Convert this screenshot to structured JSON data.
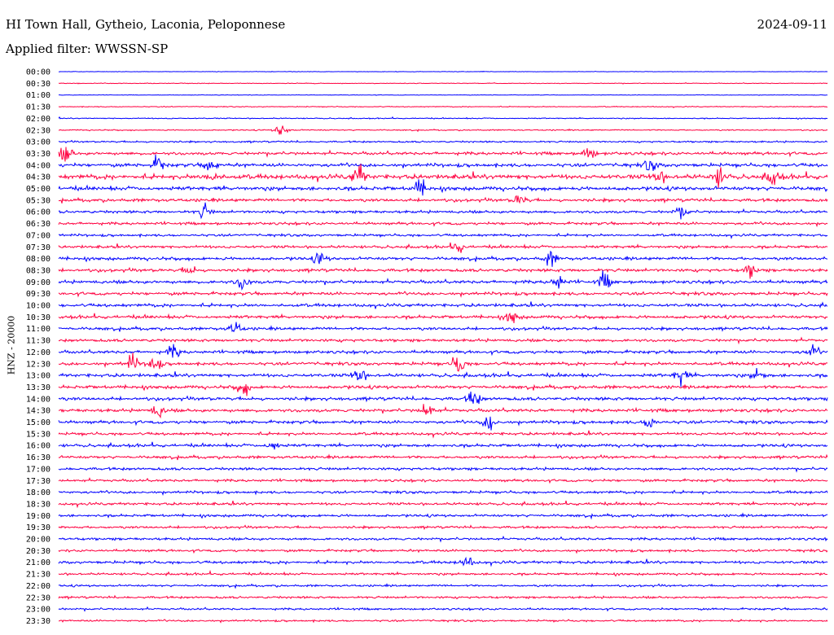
{
  "header": {
    "station": "HI Town Hall, Gytheio, Laconia, Peloponnese",
    "date": "2024-09-11",
    "filter": "Applied filter: WWSSN-SP"
  },
  "chart_data": {
    "type": "line",
    "title": "HI Town Hall, Gytheio, Laconia, Peloponnese",
    "ylabel": "HNZ - 20000",
    "xlabel": "",
    "row_labels": [
      "00:00",
      "00:30",
      "01:00",
      "01:30",
      "02:00",
      "02:30",
      "03:00",
      "03:30",
      "04:00",
      "04:30",
      "05:00",
      "05:30",
      "06:00",
      "06:30",
      "07:00",
      "07:30",
      "08:00",
      "08:30",
      "09:00",
      "09:30",
      "10:00",
      "10:30",
      "11:00",
      "11:30",
      "12:00",
      "12:30",
      "13:00",
      "13:30",
      "14:00",
      "14:30",
      "15:00",
      "15:30",
      "16:00",
      "16:30",
      "17:00",
      "17:30",
      "18:00",
      "18:30",
      "19:00",
      "19:30",
      "20:00",
      "20:30",
      "21:00",
      "21:30",
      "22:00",
      "22:30",
      "23:00",
      "23:30"
    ],
    "colors": [
      "#0000ff",
      "#ff0040"
    ],
    "noise_level": [
      0.3,
      0.4,
      0.3,
      0.5,
      0.6,
      0.7,
      1.0,
      1.8,
      2.0,
      2.6,
      2.2,
      1.8,
      1.6,
      1.6,
      1.4,
      1.6,
      1.8,
      1.8,
      1.9,
      1.8,
      1.8,
      1.8,
      1.7,
      1.7,
      1.8,
      1.8,
      1.9,
      1.9,
      1.9,
      1.9,
      1.8,
      1.6,
      1.7,
      1.6,
      1.6,
      1.5,
      1.5,
      1.5,
      1.5,
      1.4,
      1.5,
      1.4,
      1.6,
      1.3,
      1.2,
      1.3,
      1.2,
      1.1
    ],
    "events": [
      {
        "row": 5,
        "t": 0.29,
        "amp": 7
      },
      {
        "row": 7,
        "t": 0.01,
        "amp": 10
      },
      {
        "row": 7,
        "t": 0.69,
        "amp": 7
      },
      {
        "row": 8,
        "t": 0.13,
        "amp": 8
      },
      {
        "row": 8,
        "t": 0.198,
        "amp": 9
      },
      {
        "row": 8,
        "t": 0.77,
        "amp": 6
      },
      {
        "row": 9,
        "t": 0.2,
        "amp": 6
      },
      {
        "row": 9,
        "t": 0.39,
        "amp": 12
      },
      {
        "row": 9,
        "t": 0.78,
        "amp": 7
      },
      {
        "row": 9,
        "t": 0.86,
        "amp": 10
      },
      {
        "row": 9,
        "t": 0.93,
        "amp": 8
      },
      {
        "row": 10,
        "t": 0.47,
        "amp": 9
      },
      {
        "row": 11,
        "t": 0.6,
        "amp": 6
      },
      {
        "row": 12,
        "t": 0.19,
        "amp": 7
      },
      {
        "row": 12,
        "t": 0.81,
        "amp": 6
      },
      {
        "row": 15,
        "t": 0.52,
        "amp": 6
      },
      {
        "row": 16,
        "t": 0.34,
        "amp": 6
      },
      {
        "row": 16,
        "t": 0.64,
        "amp": 7
      },
      {
        "row": 17,
        "t": 0.17,
        "amp": 5
      },
      {
        "row": 17,
        "t": 0.9,
        "amp": 7
      },
      {
        "row": 18,
        "t": 0.24,
        "amp": 8
      },
      {
        "row": 18,
        "t": 0.65,
        "amp": 8
      },
      {
        "row": 18,
        "t": 0.71,
        "amp": 8
      },
      {
        "row": 21,
        "t": 0.59,
        "amp": 7
      },
      {
        "row": 22,
        "t": 0.23,
        "amp": 7
      },
      {
        "row": 24,
        "t": 0.15,
        "amp": 7
      },
      {
        "row": 24,
        "t": 0.98,
        "amp": 6
      },
      {
        "row": 25,
        "t": 0.095,
        "amp": 8
      },
      {
        "row": 25,
        "t": 0.125,
        "amp": 8
      },
      {
        "row": 25,
        "t": 0.52,
        "amp": 11
      },
      {
        "row": 26,
        "t": 0.39,
        "amp": 10
      },
      {
        "row": 26,
        "t": 0.81,
        "amp": 8
      },
      {
        "row": 26,
        "t": 0.91,
        "amp": 6
      },
      {
        "row": 27,
        "t": 0.24,
        "amp": 7
      },
      {
        "row": 28,
        "t": 0.54,
        "amp": 9
      },
      {
        "row": 29,
        "t": 0.13,
        "amp": 7
      },
      {
        "row": 29,
        "t": 0.48,
        "amp": 8
      },
      {
        "row": 30,
        "t": 0.56,
        "amp": 8
      },
      {
        "row": 30,
        "t": 0.77,
        "amp": 8
      },
      {
        "row": 32,
        "t": 0.28,
        "amp": 5
      },
      {
        "row": 42,
        "t": 0.53,
        "amp": 6
      }
    ]
  }
}
